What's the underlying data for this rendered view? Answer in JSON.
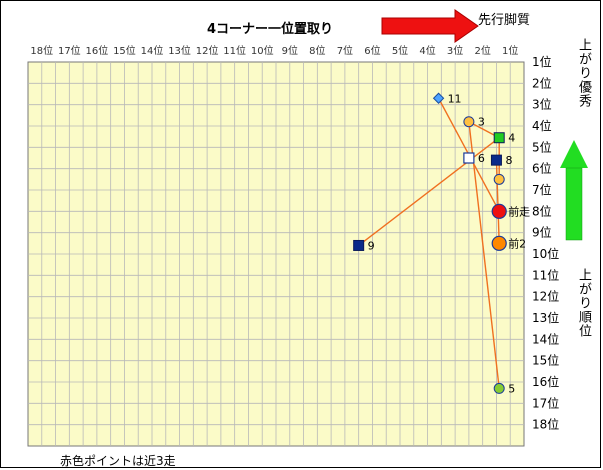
{
  "chart_data": {
    "type": "scatter",
    "title": "4コーナー一位置取り",
    "x_tick_labels": [
      "18位",
      "17位",
      "16位",
      "15位",
      "14位",
      "13位",
      "12位",
      "11位",
      "10位",
      "9位",
      "8位",
      "7位",
      "6位",
      "5位",
      "4位",
      "3位",
      "2位",
      "1位"
    ],
    "y_tick_labels": [
      "1位",
      "2位",
      "3位",
      "4位",
      "5位",
      "6位",
      "7位",
      "8位",
      "9位",
      "10位",
      "11位",
      "12位",
      "13位",
      "14位",
      "15位",
      "16位",
      "17位",
      "18位"
    ],
    "xlim": [
      18,
      1
    ],
    "ylim": [
      1,
      18
    ],
    "x_meaning": "4コーナー位置取り",
    "y_meaning": "上がり順位",
    "grid": true,
    "annotations": {
      "lead_label": "先行脚質",
      "top_right_label": "上がり優秀",
      "right_axis_label": "上がり順位",
      "footnote": "赤色ポイントは近3走"
    },
    "points": [
      {
        "label": "11",
        "x": 3.6,
        "y": 2.2,
        "marker": "diamond",
        "color": "#4da3ff"
      },
      {
        "label": "3",
        "x": 2.5,
        "y": 3.3,
        "marker": "circle",
        "color": "#ffc040"
      },
      {
        "label": "4",
        "x": 1.4,
        "y": 4.05,
        "marker": "square",
        "color": "#22cc22"
      },
      {
        "label": "6",
        "x": 2.5,
        "y": 5.0,
        "marker": "square-open",
        "color": "#ffffff"
      },
      {
        "label": "8",
        "x": 1.5,
        "y": 5.1,
        "marker": "square",
        "color": "#0a2a8a"
      },
      {
        "label": "",
        "x": 1.4,
        "y": 6.0,
        "marker": "circle",
        "color": "#ffc040"
      },
      {
        "label": "前走",
        "x": 1.4,
        "y": 7.5,
        "marker": "circle-large",
        "color": "#ee1111"
      },
      {
        "label": "9",
        "x": 6.5,
        "y": 9.1,
        "marker": "square",
        "color": "#0a2a8a"
      },
      {
        "label": "前2",
        "x": 1.4,
        "y": 9.0,
        "marker": "circle-large",
        "color": "#ff8800"
      },
      {
        "label": "5",
        "x": 1.4,
        "y": 15.8,
        "marker": "circle",
        "color": "#88cc33"
      }
    ],
    "connections": [
      [
        3.6,
        2.2,
        1.4,
        7.5
      ],
      [
        2.5,
        3.3,
        1.4,
        15.8
      ],
      [
        1.4,
        4.05,
        6.5,
        9.1
      ],
      [
        1.5,
        5.1,
        1.4,
        9.0
      ],
      [
        1.4,
        4.05,
        1.4,
        6.0
      ],
      [
        2.5,
        3.3,
        1.4,
        4.05
      ]
    ]
  }
}
